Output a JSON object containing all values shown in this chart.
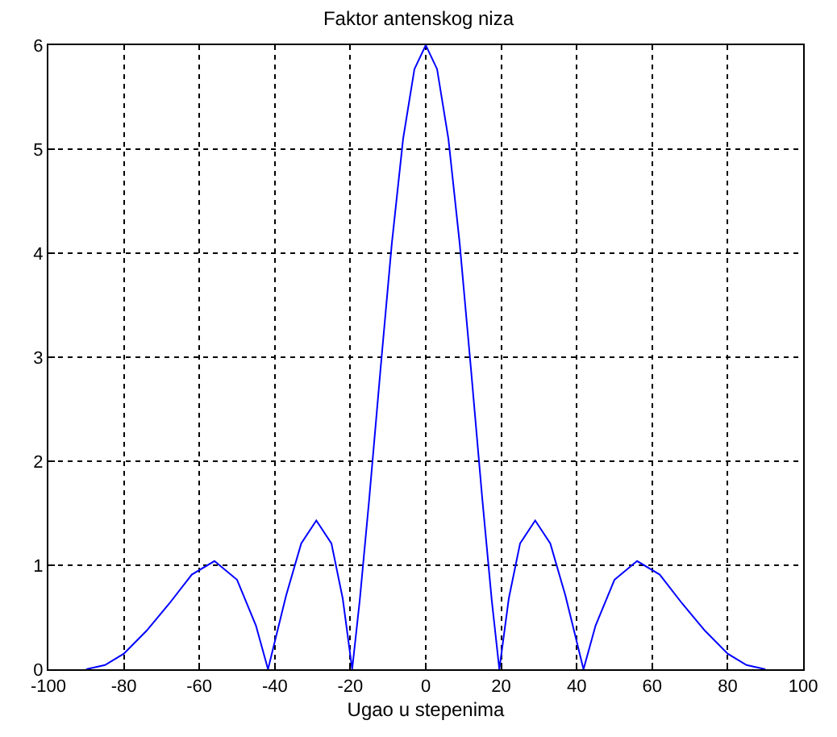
{
  "chart_data": {
    "type": "line",
    "title": "Faktor antenskog niza",
    "xlabel": "Ugao u stepenima",
    "x": [
      -90,
      -85,
      -80,
      -74,
      -68,
      -62,
      -56,
      -50,
      -45,
      -41.8,
      -37,
      -33,
      -29,
      -25,
      -22,
      -19.5,
      -17.5,
      -15,
      -12,
      -9,
      -6,
      -3,
      0,
      3,
      6,
      9,
      12,
      15,
      17.5,
      19.5,
      22,
      25,
      29,
      33,
      37,
      41.8,
      45,
      50,
      56,
      62,
      68,
      74,
      80,
      85,
      90
    ],
    "series": [
      {
        "color": "#0000ff",
        "values": [
          0,
          0.04,
          0.15,
          0.37,
          0.63,
          0.91,
          1.04,
          0.86,
          0.42,
          0,
          0.71,
          1.21,
          1.43,
          1.21,
          0.68,
          0,
          0.66,
          1.63,
          2.88,
          4.09,
          5.1,
          5.77,
          6,
          5.77,
          5.1,
          4.09,
          2.88,
          1.63,
          0.66,
          0,
          0.68,
          1.21,
          1.43,
          1.21,
          0.71,
          0,
          0.42,
          0.86,
          1.04,
          0.91,
          0.63,
          0.37,
          0.15,
          0.04,
          0
        ]
      }
    ],
    "xlim": [
      -100,
      100
    ],
    "xticks": [
      -100,
      -80,
      -60,
      -40,
      -20,
      0,
      20,
      40,
      60,
      80,
      100
    ],
    "ylim": [
      0,
      6
    ],
    "yticks": [
      0,
      1,
      2,
      3,
      4,
      5,
      6
    ],
    "grid": true,
    "legend": false,
    "marker": "none",
    "line_style": "solid"
  }
}
